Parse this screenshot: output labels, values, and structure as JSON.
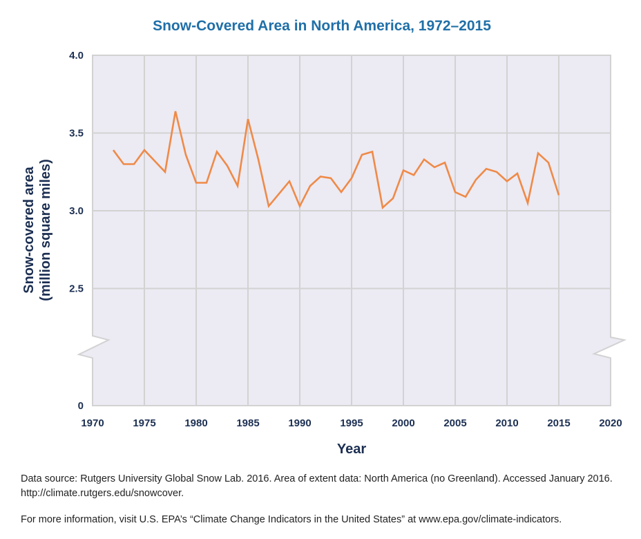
{
  "chart_data": {
    "type": "line",
    "title": "Snow-Covered Area in North America, 1972–2015",
    "xlabel": "Year",
    "ylabel_line1": "Snow-covered area",
    "ylabel_line2": "(million square miles)",
    "xlim": [
      1970,
      2020
    ],
    "ylim_display": [
      0,
      4.0
    ],
    "axis_break": true,
    "x_ticks": [
      "1970",
      "1975",
      "1980",
      "1985",
      "1990",
      "1995",
      "2000",
      "2005",
      "2010",
      "2015",
      "2020"
    ],
    "y_ticks": [
      "0",
      "2.5",
      "3.0",
      "3.5",
      "4.0"
    ],
    "grid": true,
    "series": [
      {
        "color": "#ef8a47",
        "x": [
          1972,
          1973,
          1974,
          1975,
          1976,
          1977,
          1978,
          1979,
          1980,
          1981,
          1982,
          1983,
          1984,
          1985,
          1986,
          1987,
          1988,
          1989,
          1990,
          1991,
          1992,
          1993,
          1994,
          1995,
          1996,
          1997,
          1998,
          1999,
          2000,
          2001,
          2002,
          2003,
          2004,
          2005,
          2006,
          2007,
          2008,
          2009,
          2010,
          2011,
          2012,
          2013,
          2014,
          2015
        ],
        "y": [
          3.39,
          3.3,
          3.3,
          3.39,
          3.32,
          3.25,
          3.64,
          3.36,
          3.18,
          3.18,
          3.38,
          3.29,
          3.16,
          3.59,
          3.33,
          3.03,
          3.11,
          3.19,
          3.03,
          3.16,
          3.22,
          3.21,
          3.12,
          3.21,
          3.36,
          3.38,
          3.02,
          3.08,
          3.26,
          3.23,
          3.33,
          3.28,
          3.31,
          3.12,
          3.09,
          3.2,
          3.27,
          3.25,
          3.19,
          3.24,
          3.05,
          3.37,
          3.31,
          3.1
        ]
      }
    ]
  },
  "notes": {
    "source": "Data source: Rutgers University Global Snow Lab. 2016. Area of extent data: North America (no Greenland). Accessed January 2016. http://climate.rutgers.edu/snowcover.",
    "info": "For more information, visit U.S. EPA’s “Climate Change Indicators in the United States” at www.epa.gov/climate-indicators."
  },
  "colors": {
    "plot_bg": "#eceaf3",
    "grid": "#d2d2d2",
    "line": "#ef8a47",
    "title": "#1f6fa8",
    "text": "#1c2f52"
  }
}
